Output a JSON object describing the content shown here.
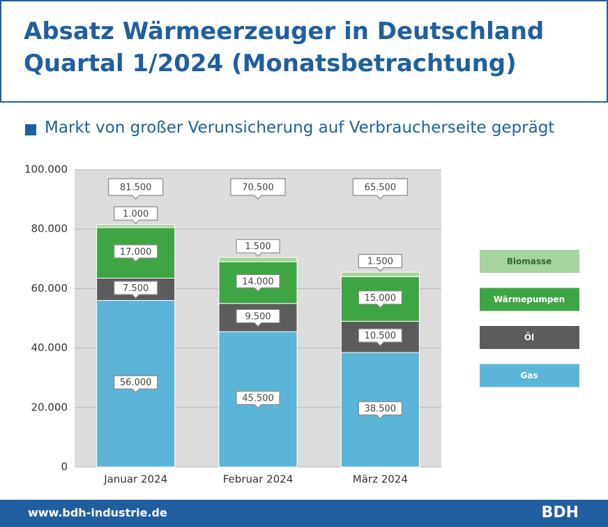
{
  "chart_data": {
    "type": "stacked-bar",
    "title": "Absatz Wärmeerzeuger in Deutschland Quartal 1/2024 (Monatsbetrachtung)",
    "subtitle": "Markt von großer Verunsicherung auf Verbraucherseite geprägt",
    "categories": [
      "Januar 2024",
      "Februar 2024",
      "März 2024"
    ],
    "series": [
      {
        "name": "Gas",
        "color": "#5bb5d9",
        "values": [
          56000,
          45500,
          38500
        ],
        "value_labels": [
          "56.000",
          "45.500",
          "38.500"
        ]
      },
      {
        "name": "Öl",
        "color": "#5c5c5c",
        "values": [
          7500,
          9500,
          10500
        ],
        "value_labels": [
          "7.500",
          "9.500",
          "10.500"
        ]
      },
      {
        "name": "Wärmepumpen",
        "color": "#3da643",
        "values": [
          17000,
          14000,
          15000
        ],
        "value_labels": [
          "17.000",
          "14.000",
          "15.000"
        ]
      },
      {
        "name": "Biomasse",
        "color": "#a7d49f",
        "values": [
          1000,
          1500,
          1500
        ],
        "value_labels": [
          "1.000",
          "1.500",
          "1.500"
        ]
      }
    ],
    "totals": {
      "values": [
        81500,
        70500,
        65500
      ],
      "value_labels": [
        "81.500",
        "70.500",
        "65.500"
      ]
    },
    "ylim": [
      0,
      100000
    ],
    "yticks": [
      0,
      {
        "value": 20000,
        "label": "20.000"
      },
      {
        "value": 40000,
        "label": "40.000"
      },
      {
        "value": 60000,
        "label": "60.000"
      },
      {
        "value": 80000,
        "label": "80.000"
      },
      {
        "value": 100000,
        "label": "100.000"
      }
    ],
    "grid": true,
    "legend": "right"
  },
  "footer": {
    "url": "www.bdh-industrie.de",
    "brand": "BDH"
  }
}
